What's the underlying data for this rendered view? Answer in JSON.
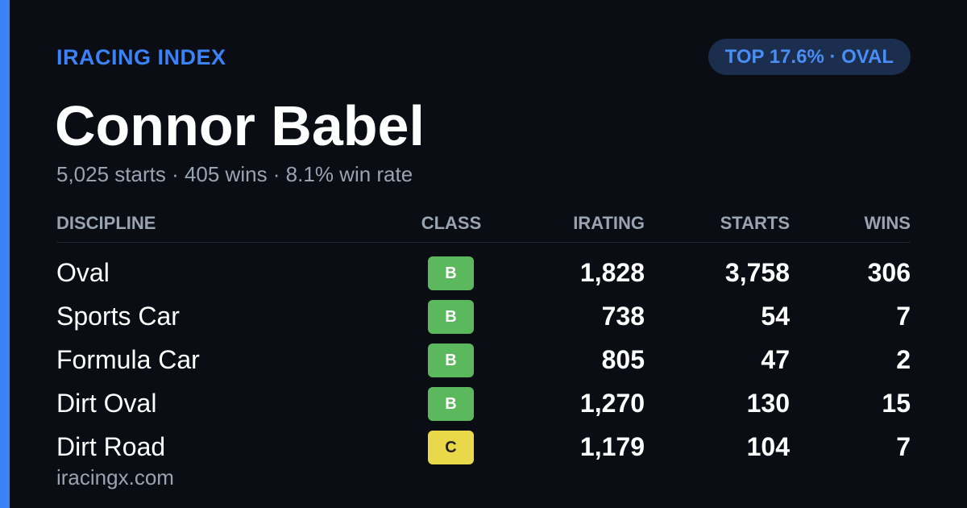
{
  "header": {
    "brand": "IRACING INDEX",
    "badge": "TOP 17.6% · OVAL",
    "name": "Connor Babel",
    "summary": "5,025 starts · 405 wins · 8.1% win rate"
  },
  "table": {
    "columns": [
      "DISCIPLINE",
      "CLASS",
      "IRATING",
      "STARTS",
      "WINS"
    ],
    "rows": [
      [
        "Oval",
        "B",
        "1,828",
        "3,758",
        "306"
      ],
      [
        "Sports Car",
        "B",
        "738",
        "54",
        "7"
      ],
      [
        "Formula Car",
        "B",
        "805",
        "47",
        "2"
      ],
      [
        "Dirt Oval",
        "B",
        "1,270",
        "130",
        "15"
      ],
      [
        "Dirt Road",
        "C",
        "1,179",
        "104",
        "7"
      ]
    ]
  },
  "footer": {
    "site": "iracingx.com"
  }
}
